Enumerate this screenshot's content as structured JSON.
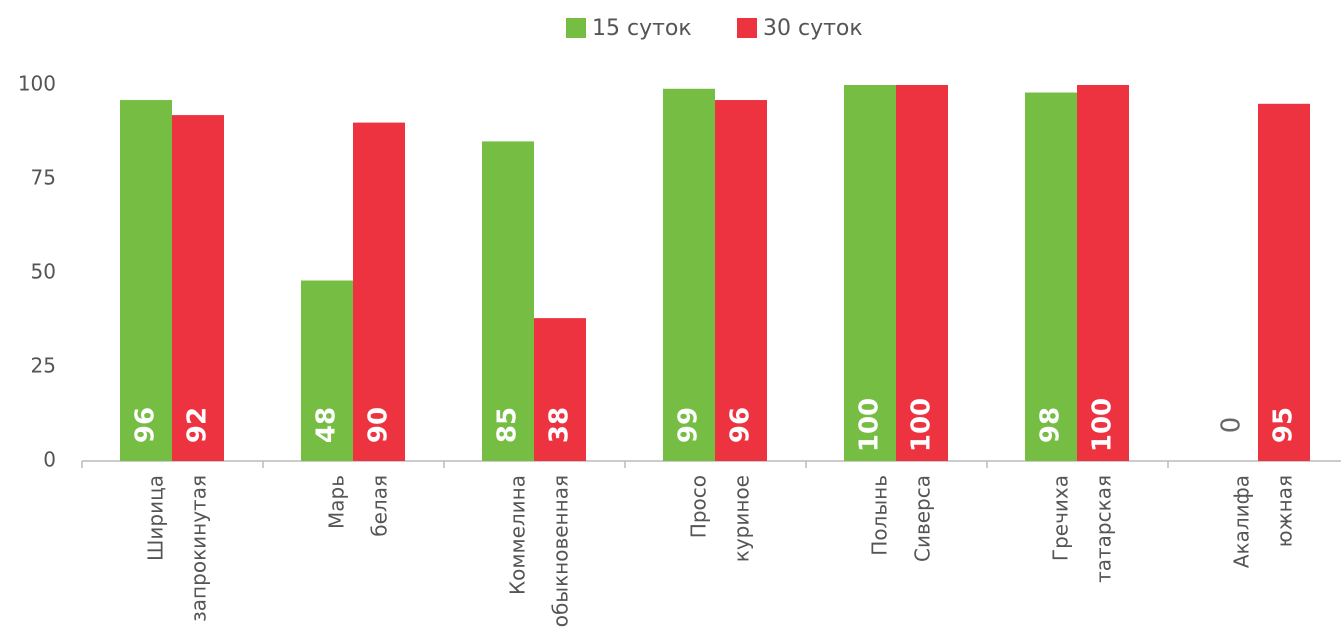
{
  "chart_data": {
    "type": "bar",
    "categories": [
      [
        "Ширица",
        "запрокинутая"
      ],
      [
        "Марь",
        "белая"
      ],
      [
        "Коммелина",
        "обыкновенная"
      ],
      [
        "Просо",
        "куриное"
      ],
      [
        "Полынь",
        "Сиверса"
      ],
      [
        "Гречиха",
        "татарская"
      ],
      [
        "Акалифа",
        "южная"
      ]
    ],
    "series": [
      {
        "name": "15 суток",
        "color": "#76bd43",
        "values": [
          96,
          48,
          85,
          99,
          100,
          98,
          0
        ]
      },
      {
        "name": "30 суток",
        "color": "#ee3340",
        "values": [
          92,
          90,
          38,
          96,
          100,
          100,
          95
        ]
      }
    ],
    "ylim": [
      0,
      100
    ],
    "yticks": [
      0,
      25,
      50,
      75,
      100
    ],
    "grid": false,
    "legend": "top"
  }
}
